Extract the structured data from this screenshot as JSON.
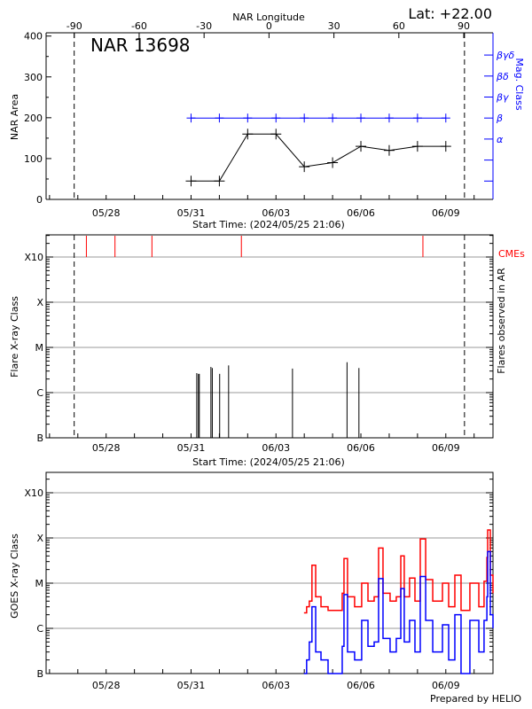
{
  "header": {
    "lat_label": "Lat: +22.00",
    "region_label": "NAR 13698",
    "footer": "Prepared by HELIO"
  },
  "colors": {
    "grid": "#999999",
    "mag_class": "#0000ff",
    "cme": "#ff0000",
    "goes_long": "#ff0000",
    "goes_short": "#0000ff"
  },
  "chart_data": [
    {
      "type": "line",
      "ylabel": "NAR Area",
      "xlabel": "Start Time: (2024/05/25 21:06)",
      "xlim": [
        "2024-05-25 21:06",
        "2024-06-10 16:00"
      ],
      "ylim": [
        0,
        408
      ],
      "yticks": [
        0,
        100,
        200,
        300,
        400
      ],
      "xtick_labels": [
        {
          "date": "2024-05-28",
          "label": "05/28"
        },
        {
          "date": "2024-05-31",
          "label": "05/31"
        },
        {
          "date": "2024-06-03",
          "label": "06/03"
        },
        {
          "date": "2024-06-06",
          "label": "06/06"
        },
        {
          "date": "2024-06-09",
          "label": "06/09"
        }
      ],
      "top_axis": {
        "label": "NAR Longitude",
        "xlim": [
          -103,
          103.5
        ],
        "ticks": [
          -90,
          -60,
          -30,
          0,
          30,
          60,
          90
        ]
      },
      "limb_lines": [
        "2024-05-26 20:55",
        "2024-06-09 15:50"
      ],
      "area": {
        "dates": [
          "2024-05-31",
          "2024-06-01",
          "2024-06-02",
          "2024-06-03",
          "2024-06-04",
          "2024-06-05",
          "2024-06-06",
          "2024-06-07",
          "2024-06-08",
          "2024-06-09"
        ],
        "values": [
          45,
          45,
          160,
          160,
          80,
          90,
          130,
          120,
          130,
          130
        ]
      },
      "mag_class": {
        "ylabel": "Mag. Class",
        "axis_labels": [
          {
            "level": 3,
            "label": "α"
          },
          {
            "level": 4,
            "label": "β"
          },
          {
            "level": 5,
            "label": "βγ"
          },
          {
            "level": 6,
            "label": "βδ"
          },
          {
            "level": 7,
            "label": "βγδ"
          }
        ],
        "levels_count": 7,
        "dates": [
          "2024-05-31",
          "2024-06-01",
          "2024-06-02",
          "2024-06-03",
          "2024-06-04",
          "2024-06-05",
          "2024-06-06",
          "2024-06-07",
          "2024-06-08",
          "2024-06-09"
        ],
        "values": [
          "β",
          "β",
          "β",
          "β",
          "β",
          "β",
          "β",
          "β",
          "β",
          "β"
        ]
      }
    },
    {
      "type": "bar",
      "ylabel": "Flare X-ray Class",
      "right_label": "Flares observed in AR",
      "cme_label": "CMEs",
      "xlabel": "Start Time: (2024/05/25 21:06)",
      "xlim": [
        "2024-05-25 21:06",
        "2024-06-10 16:00"
      ],
      "ylim": [
        1e-07,
        0.003
      ],
      "yscale": "log",
      "grid": true,
      "ytick_labels": [
        {
          "v": 1e-07,
          "label": "B"
        },
        {
          "v": 1e-06,
          "label": "C"
        },
        {
          "v": 1e-05,
          "label": "M"
        },
        {
          "v": 0.0001,
          "label": "X"
        },
        {
          "v": 0.001,
          "label": "X10"
        }
      ],
      "xtick_labels": [
        {
          "date": "2024-05-28",
          "label": "05/28"
        },
        {
          "date": "2024-05-31",
          "label": "05/31"
        },
        {
          "date": "2024-06-03",
          "label": "06/03"
        },
        {
          "date": "2024-06-06",
          "label": "06/06"
        },
        {
          "date": "2024-06-09",
          "label": "06/09"
        }
      ],
      "limb_lines": [
        "2024-05-26 20:55",
        "2024-06-09 15:50"
      ],
      "flares": [
        {
          "time": "2024-05-31 04:50",
          "class": "C2.7"
        },
        {
          "time": "2024-05-31 06:15",
          "class": "C2.6"
        },
        {
          "time": "2024-05-31 07:00",
          "class": "C2.6"
        },
        {
          "time": "2024-05-31 16:50",
          "class": "C3.7"
        },
        {
          "time": "2024-05-31 18:00",
          "class": "C3.5"
        },
        {
          "time": "2024-06-01 00:15",
          "class": "C2.6"
        },
        {
          "time": "2024-06-01 07:50",
          "class": "C4.0"
        },
        {
          "time": "2024-06-03 14:00",
          "class": "C3.4"
        },
        {
          "time": "2024-06-05 12:15",
          "class": "C4.7"
        },
        {
          "time": "2024-06-05 22:20",
          "class": "C3.5"
        }
      ],
      "cmes": [
        "2024-05-27 07:15",
        "2024-05-28 07:30",
        "2024-05-29 14:50",
        "2024-06-01 18:40",
        "2024-06-08 04:35"
      ]
    },
    {
      "type": "line",
      "ylabel": "GOES X-ray Class",
      "xlim": [
        "2024-05-25 21:06",
        "2024-06-10 16:00"
      ],
      "ylim": [
        1e-07,
        0.003
      ],
      "yscale": "log",
      "grid": true,
      "ytick_labels": [
        {
          "v": 1e-07,
          "label": "B"
        },
        {
          "v": 1e-06,
          "label": "C"
        },
        {
          "v": 1e-05,
          "label": "M"
        },
        {
          "v": 0.0001,
          "label": "X"
        },
        {
          "v": 0.001,
          "label": "X10"
        }
      ],
      "xtick_labels": [
        {
          "date": "2024-05-28",
          "label": "05/28"
        },
        {
          "date": "2024-05-31",
          "label": "05/31"
        },
        {
          "date": "2024-06-03",
          "label": "06/03"
        },
        {
          "date": "2024-06-06",
          "label": "06/06"
        },
        {
          "date": "2024-06-09",
          "label": "06/09"
        }
      ],
      "x": [
        "2024-06-03 23:45",
        "2024-06-04 02:00",
        "2024-06-04 04:15",
        "2024-06-04 06:30",
        "2024-06-04 09:40",
        "2024-06-04 14:10",
        "2024-06-04 20:10",
        "2024-06-05 03:40",
        "2024-06-05 08:10",
        "2024-06-05 09:40",
        "2024-06-05 12:40",
        "2024-06-05 18:40",
        "2024-06-06 00:40",
        "2024-06-06 06:00",
        "2024-06-06 11:15",
        "2024-06-06 15:00",
        "2024-06-06 18:45",
        "2024-06-07 00:45",
        "2024-06-07 06:00",
        "2024-06-07 09:50",
        "2024-06-07 12:45",
        "2024-06-07 17:15",
        "2024-06-07 21:50",
        "2024-06-08 02:20",
        "2024-06-08 06:55",
        "2024-06-08 12:55",
        "2024-06-08 21:10",
        "2024-06-09 02:25",
        "2024-06-09 07:40",
        "2024-06-09 12:55",
        "2024-06-09 20:25",
        "2024-06-10 04:00",
        "2024-06-10 08:25",
        "2024-06-10 10:50",
        "2024-06-10 11:30",
        "2024-06-10 13:45",
        "2024-06-10 16:00"
      ],
      "series": [
        {
          "color": "#ff0000",
          "values": [
            2.2e-06,
            3e-06,
            4e-06,
            2.5e-05,
            5e-06,
            3e-06,
            2.5e-06,
            2.5e-06,
            6e-06,
            3.5e-05,
            5e-06,
            3e-06,
            1e-05,
            4e-06,
            5e-06,
            6e-05,
            6e-06,
            4e-06,
            5e-06,
            4e-05,
            5e-06,
            1.3e-05,
            4e-06,
            9.5e-05,
            1.2e-05,
            4e-06,
            1e-05,
            3e-06,
            1.5e-05,
            2.5e-06,
            1e-05,
            3e-06,
            1.1e-05,
            3.7e-05,
            0.00015,
            1.5e-05,
            6e-06
          ]
        },
        {
          "color": "#0000ff",
          "values": [
            1e-07,
            2e-07,
            5e-07,
            3e-06,
            3e-07,
            2e-07,
            1e-07,
            1e-07,
            4e-07,
            5.6e-06,
            3e-07,
            2e-07,
            1.5e-06,
            4e-07,
            5e-07,
            1.26e-05,
            6e-07,
            3e-07,
            6e-07,
            7.6e-06,
            5e-07,
            1.5e-06,
            3e-07,
            1.4e-05,
            1.5e-06,
            3e-07,
            1.2e-06,
            2e-07,
            2e-06,
            1e-07,
            1.5e-06,
            3e-07,
            1.5e-06,
            5e-06,
            5e-05,
            2e-06,
            1e-06
          ]
        }
      ]
    }
  ]
}
